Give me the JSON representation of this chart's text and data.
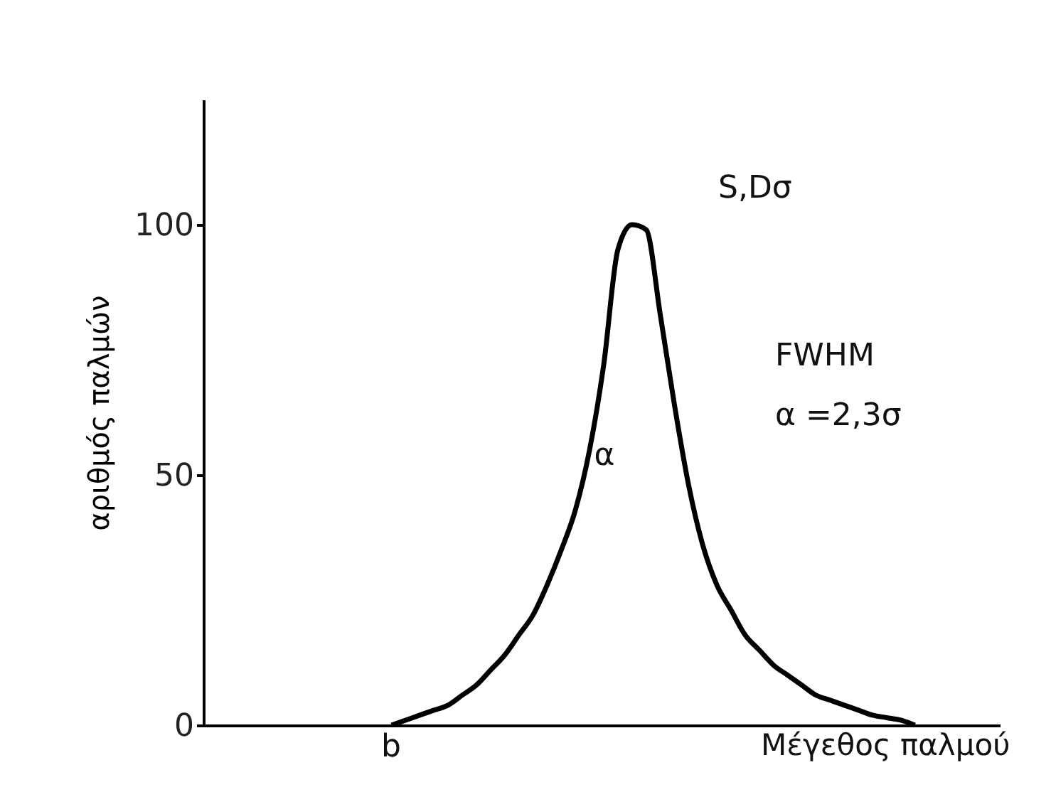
{
  "chart_data": {
    "type": "line",
    "xlabel": "Μέγεθος παλμού",
    "ylabel": "αριθμός παλμών",
    "categories": [
      null,
      null,
      null,
      null,
      null,
      null,
      null,
      null,
      null,
      null,
      null,
      null,
      null,
      null,
      null,
      null,
      null,
      null,
      null,
      null,
      null,
      null,
      null,
      null,
      null,
      null,
      null,
      null,
      null,
      null,
      null,
      null,
      null,
      null,
      null,
      null,
      null,
      null,
      null,
      null,
      null,
      null,
      null,
      null,
      null,
      null,
      null,
      null,
      null,
      null,
      null,
      null,
      null,
      null,
      null,
      null,
      null
    ],
    "values": [
      null,
      null,
      null,
      null,
      null,
      null,
      null,
      null,
      null,
      null,
      null,
      null,
      null,
      0,
      1,
      2,
      3,
      4,
      6,
      8,
      11,
      14,
      18,
      22,
      28,
      35,
      43,
      55,
      72,
      95,
      100,
      99,
      82,
      64,
      48,
      36,
      28,
      23,
      18,
      15,
      12,
      10,
      8,
      6,
      5,
      4,
      3,
      2,
      1.5,
      1,
      0,
      null,
      null,
      null,
      null,
      null,
      null
    ],
    "color": "#000000",
    "ylim": [
      0,
      125
    ],
    "yticks": [
      0,
      50,
      100
    ],
    "grid": false,
    "tick_labels": "y",
    "annotations": [
      "S,Dσ",
      "FWHM",
      "α =2,3σ",
      "α",
      "b"
    ]
  }
}
